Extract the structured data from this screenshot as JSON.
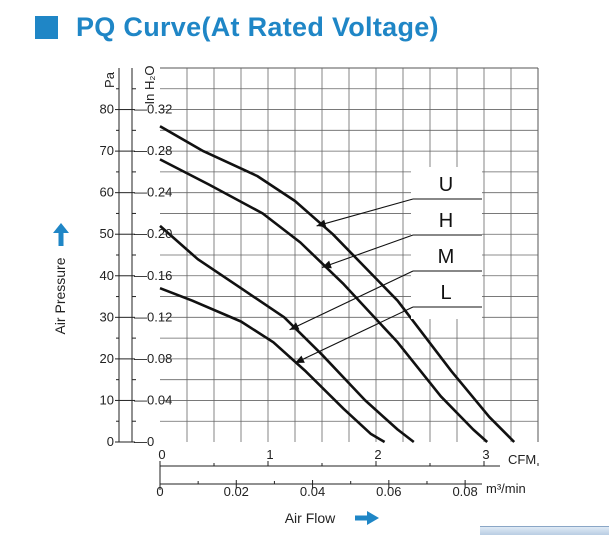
{
  "header": {
    "title": "PQ Curve(At Rated Voltage)",
    "accent_color": "#1f86c6"
  },
  "chart_data": {
    "type": "line",
    "title": "PQ Curve(At Rated Voltage)",
    "xlabel": "Air Flow",
    "ylabel": "Air Pressure",
    "x_unit_primary": "CFM",
    "x_unit_secondary": "m³/min",
    "y_unit_primary": "Pa",
    "y_unit_secondary": "In H₂O",
    "xlim": [
      0,
      3.5
    ],
    "ylim": [
      0,
      90
    ],
    "grid": true,
    "x_ticks_primary": [
      "0",
      "1",
      "2",
      "3"
    ],
    "x_ticks_secondary": [
      "0",
      "0.02",
      "0.04",
      "0.06",
      "0.08"
    ],
    "y_ticks_pa": [
      "0",
      "10",
      "20",
      "30",
      "40",
      "50",
      "60",
      "70",
      "80"
    ],
    "y_ticks_inh2o": [
      "0",
      "0.04",
      "0.08",
      "0.12",
      "0.16",
      "0.20",
      "0.24",
      "0.28",
      "0.32"
    ],
    "arrow_color": "#1f86c6",
    "series": [
      {
        "name": "U",
        "x": [
          0,
          0.4,
          0.9,
          1.25,
          1.6,
          2.2,
          2.7,
          3.05,
          3.28
        ],
        "y": [
          76,
          70,
          64,
          58,
          50,
          34,
          17,
          6,
          0
        ]
      },
      {
        "name": "H",
        "x": [
          0,
          0.45,
          0.95,
          1.3,
          1.7,
          2.2,
          2.6,
          2.9,
          3.03
        ],
        "y": [
          68,
          62,
          55,
          48,
          38,
          24,
          11,
          3,
          0
        ]
      },
      {
        "name": "M",
        "x": [
          0,
          0.35,
          0.75,
          1.15,
          1.5,
          1.9,
          2.2,
          2.35
        ],
        "y": [
          52,
          44,
          37,
          30,
          21,
          10,
          3,
          0
        ]
      },
      {
        "name": "L",
        "x": [
          0,
          0.3,
          0.75,
          1.05,
          1.35,
          1.7,
          1.95,
          2.08
        ],
        "y": [
          37,
          34,
          29,
          24,
          17,
          8,
          2,
          0
        ]
      }
    ]
  }
}
